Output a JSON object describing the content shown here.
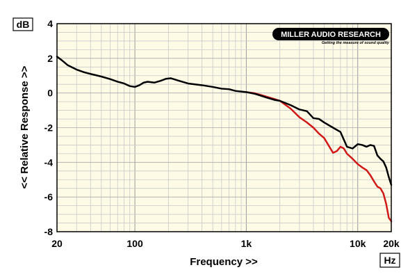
{
  "logo": {
    "title": "MILLER AUDIO RESEARCH",
    "tagline": "Getting the measure of sound quality"
  },
  "chart_data": {
    "type": "line",
    "title": "",
    "xlabel": "Frequency >>",
    "ylabel": "<< Relative Response >>",
    "x_unit": "Hz",
    "y_unit": "dB",
    "xscale": "log",
    "xlim": [
      20,
      20000
    ],
    "ylim": [
      -8,
      4
    ],
    "x_ticks": [
      {
        "value": 20,
        "label": "20"
      },
      {
        "value": 100,
        "label": "100"
      },
      {
        "value": 1000,
        "label": "1k"
      },
      {
        "value": 10000,
        "label": "10k"
      },
      {
        "value": 20000,
        "label": "20k"
      }
    ],
    "y_ticks": [
      {
        "value": 4,
        "label": "4"
      },
      {
        "value": 2,
        "label": "2"
      },
      {
        "value": 0,
        "label": "0"
      },
      {
        "value": -2,
        "label": "-2"
      },
      {
        "value": -4,
        "label": "-4"
      },
      {
        "value": -6,
        "label": "-6"
      },
      {
        "value": -8,
        "label": "-8"
      }
    ],
    "grid": true,
    "colors": {
      "plot_background": "#fdfbe6",
      "grid": "#c9c9c9",
      "black_series": "#000000",
      "red_series": "#d01818"
    },
    "series": [
      {
        "color": "black",
        "points": [
          [
            20,
            2.1
          ],
          [
            22,
            1.9
          ],
          [
            25,
            1.6
          ],
          [
            30,
            1.35
          ],
          [
            35,
            1.2
          ],
          [
            40,
            1.1
          ],
          [
            50,
            0.95
          ],
          [
            60,
            0.8
          ],
          [
            70,
            0.65
          ],
          [
            80,
            0.55
          ],
          [
            90,
            0.4
          ],
          [
            100,
            0.35
          ],
          [
            110,
            0.45
          ],
          [
            120,
            0.6
          ],
          [
            130,
            0.65
          ],
          [
            150,
            0.6
          ],
          [
            170,
            0.7
          ],
          [
            190,
            0.82
          ],
          [
            210,
            0.85
          ],
          [
            250,
            0.7
          ],
          [
            300,
            0.55
          ],
          [
            400,
            0.45
          ],
          [
            500,
            0.35
          ],
          [
            600,
            0.25
          ],
          [
            700,
            0.22
          ],
          [
            800,
            0.12
          ],
          [
            1000,
            0.05
          ],
          [
            1200,
            -0.05
          ],
          [
            1500,
            -0.25
          ],
          [
            1800,
            -0.4
          ],
          [
            2000,
            -0.45
          ],
          [
            2500,
            -0.7
          ],
          [
            3000,
            -0.95
          ],
          [
            3500,
            -1.05
          ],
          [
            4000,
            -1.45
          ],
          [
            4500,
            -1.5
          ],
          [
            5000,
            -1.7
          ],
          [
            6000,
            -2.0
          ],
          [
            7000,
            -2.25
          ],
          [
            8000,
            -3.1
          ],
          [
            9000,
            -3.2
          ],
          [
            10000,
            -2.95
          ],
          [
            11000,
            -3.0
          ],
          [
            12000,
            -3.1
          ],
          [
            13000,
            -3.0
          ],
          [
            14000,
            -3.05
          ],
          [
            15000,
            -3.6
          ],
          [
            16000,
            -3.8
          ],
          [
            17000,
            -3.95
          ],
          [
            18000,
            -4.3
          ],
          [
            19000,
            -4.85
          ],
          [
            20000,
            -5.3
          ]
        ]
      },
      {
        "color": "red",
        "points": [
          [
            1000,
            0.05
          ],
          [
            1200,
            -0.02
          ],
          [
            1500,
            -0.2
          ],
          [
            1800,
            -0.35
          ],
          [
            2000,
            -0.45
          ],
          [
            2500,
            -0.9
          ],
          [
            3000,
            -1.4
          ],
          [
            3500,
            -1.7
          ],
          [
            4000,
            -2.0
          ],
          [
            4500,
            -2.35
          ],
          [
            5000,
            -2.6
          ],
          [
            6000,
            -3.45
          ],
          [
            6500,
            -3.35
          ],
          [
            7000,
            -3.1
          ],
          [
            7500,
            -3.2
          ],
          [
            8000,
            -3.5
          ],
          [
            9000,
            -3.8
          ],
          [
            10000,
            -4.1
          ],
          [
            11000,
            -4.3
          ],
          [
            12000,
            -4.45
          ],
          [
            13000,
            -4.75
          ],
          [
            14000,
            -5.1
          ],
          [
            15000,
            -5.4
          ],
          [
            16000,
            -5.5
          ],
          [
            17000,
            -5.8
          ],
          [
            18000,
            -6.4
          ],
          [
            19000,
            -7.2
          ],
          [
            20000,
            -7.4
          ]
        ]
      }
    ]
  }
}
